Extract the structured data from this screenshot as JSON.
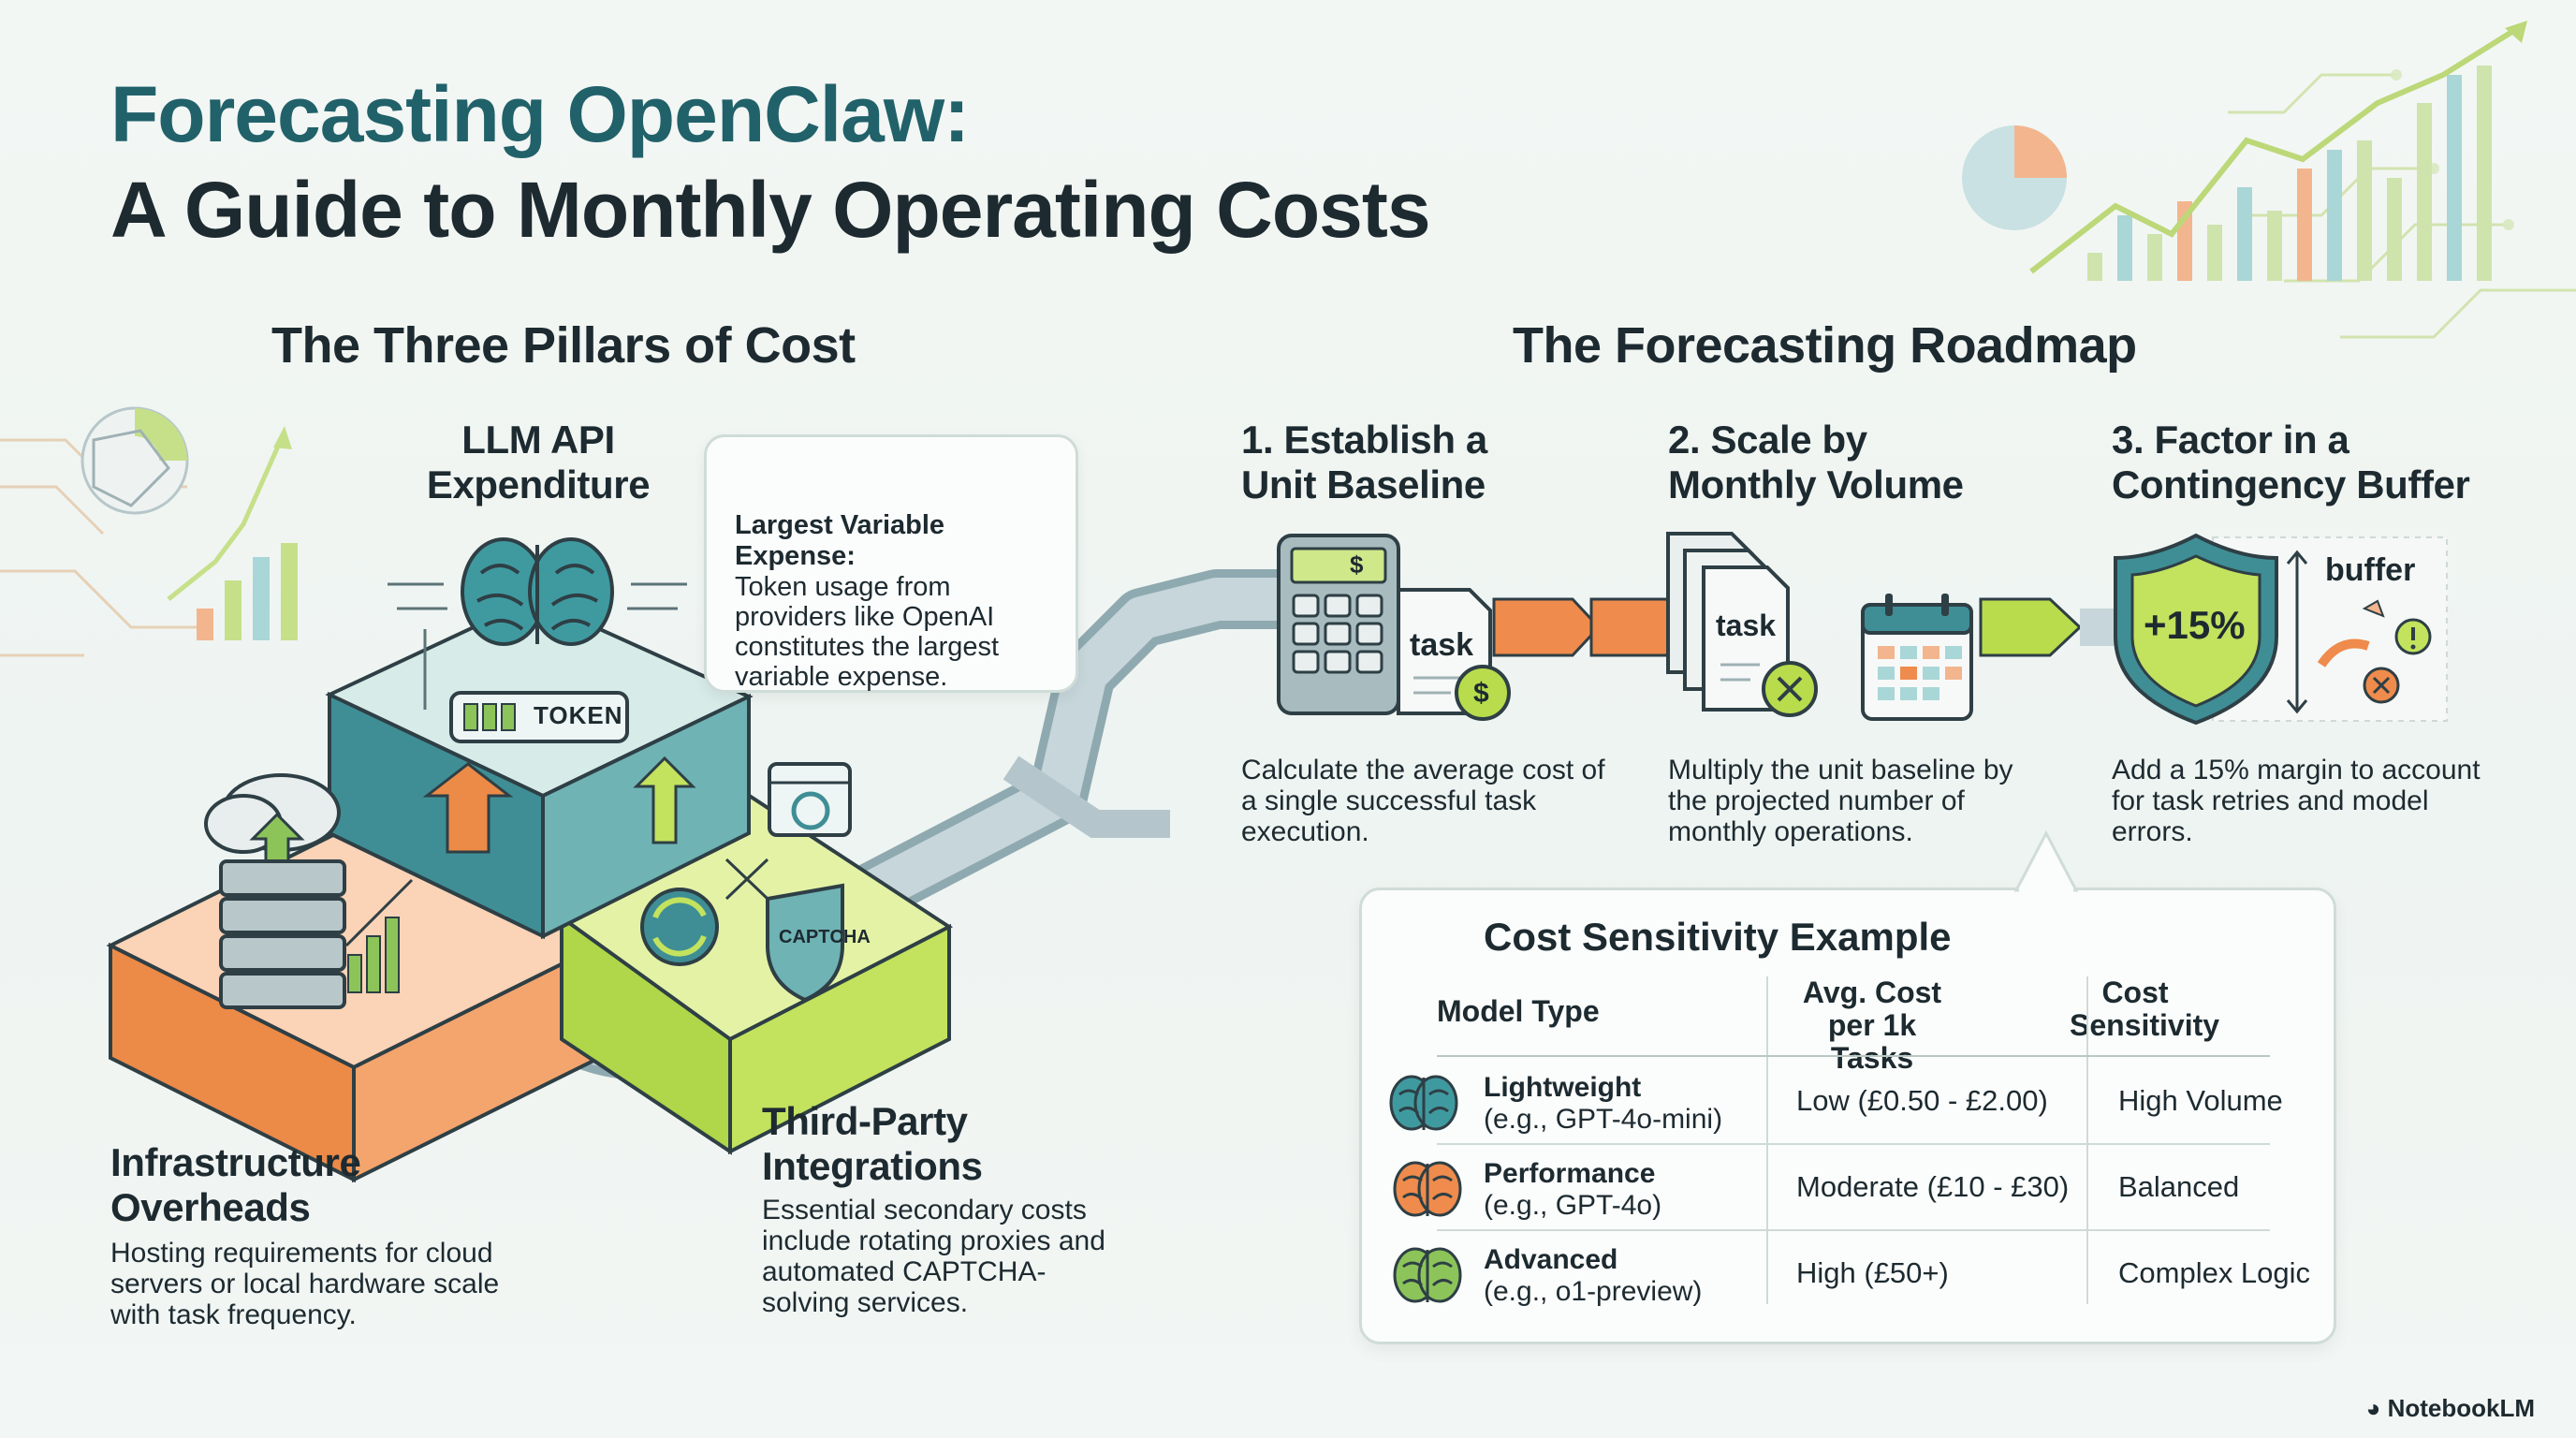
{
  "title": {
    "line1": "Forecasting OpenClaw:",
    "line2": "A Guide to Monthly Operating Costs"
  },
  "pillars": {
    "heading": "The Three Pillars of Cost",
    "llm": {
      "title": "LLM API Expenditure",
      "token_label": "TOKEN",
      "callout_bold": "Largest Variable Expense:",
      "callout_text": "Token usage from providers like OpenAI constitutes the largest variable expense."
    },
    "infrastructure": {
      "title": "Infrastructure Overheads",
      "text": "Hosting requirements for cloud servers or local hardware scale with task frequency."
    },
    "thirdparty": {
      "title": "Third-Party Integrations",
      "text": "Essential secondary costs include rotating proxies and automated CAPTCHA-solving services.",
      "captcha_label": "CAPTCHA"
    }
  },
  "roadmap": {
    "heading": "The Forecasting Roadmap",
    "steps": [
      {
        "title": "1. Establish a Unit Baseline",
        "text": "Calculate the average cost of a single successful task execution.",
        "doc_label": "task"
      },
      {
        "title": "2. Scale by Monthly Volume",
        "text": "Multiply the unit baseline by the projected number of monthly operations.",
        "doc_label": "task"
      },
      {
        "title": "3. Factor in a Contingency Buffer",
        "text": "Add a 15% margin to account for task retries and model errors.",
        "shield_label": "+15%",
        "buffer_label": "buffer"
      }
    ]
  },
  "sensitivity": {
    "title": "Cost Sensitivity Example",
    "headers": [
      "Model Type",
      "Avg. Cost per 1k Tasks",
      "Cost Sensitivity"
    ],
    "rows": [
      {
        "name": "Lightweight",
        "example": "(e.g., GPT-4o-mini)",
        "cost": "Low (£0.50 - £2.00)",
        "sensitivity": "High Volume",
        "icon_color": "#3f9aa0"
      },
      {
        "name": "Performance",
        "example": "(e.g., GPT-4o)",
        "cost": "Moderate (£10 - £30)",
        "sensitivity": "Balanced",
        "icon_color": "#ef8b4c"
      },
      {
        "name": "Advanced",
        "example": "(e.g., o1-preview)",
        "cost": "High (£50+)",
        "sensitivity": "Complex Logic",
        "icon_color": "#8cc45a"
      }
    ]
  },
  "brand": "NotebookLM",
  "colors": {
    "teal": "#3e8e96",
    "orange": "#ef8b4c",
    "lime": "#b9dc4c",
    "dark": "#1d2a30"
  }
}
